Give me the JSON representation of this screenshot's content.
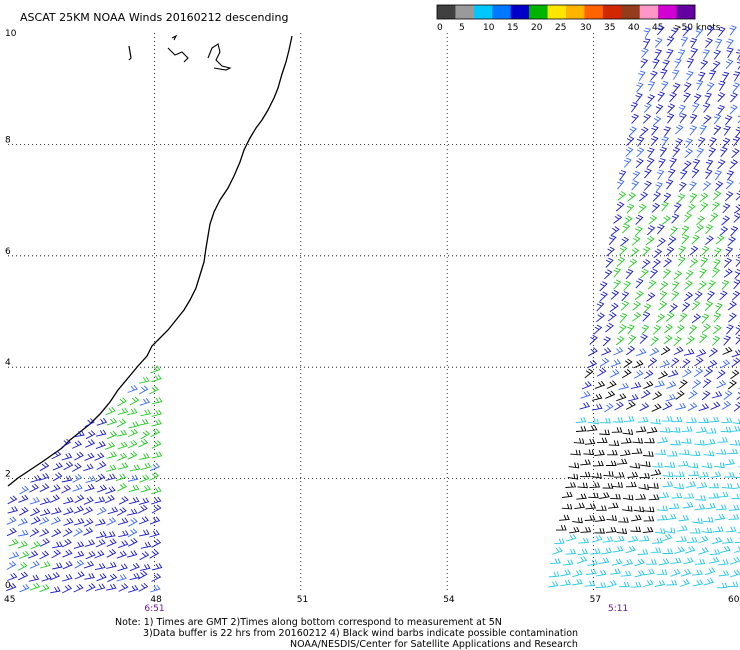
{
  "title": "ASCAT 25KM NOAA Winds 20160212 descending",
  "legend": {
    "colors": [
      "#404040",
      "#9a9a9a",
      "#00c8ff",
      "#0078ff",
      "#0000c8",
      "#00b400",
      "#ffe600",
      "#ffb400",
      "#ff6400",
      "#d22800",
      "#963c1e",
      "#ff96c8",
      "#d200d2",
      "#6400a0"
    ],
    "labels": [
      "0",
      "5",
      "10",
      "15",
      "20",
      "25",
      "30",
      "35",
      "40",
      "45",
      ">50 knots"
    ]
  },
  "chart_data": {
    "type": "wind-barb-map",
    "xlim": [
      45,
      60
    ],
    "ylim": [
      0,
      10
    ],
    "x_ticks": [
      "45",
      "48",
      "51",
      "54",
      "57",
      "60"
    ],
    "y_ticks": [
      "0",
      "2",
      "4",
      "6",
      "8",
      "10"
    ],
    "pass_times": [
      {
        "lon": 48,
        "label": "6:51"
      },
      {
        "lon": 57.5,
        "label": "5:11"
      }
    ],
    "swaths": [
      {
        "lon_range": [
          45.0,
          48.1
        ],
        "lat_range": [
          0.0,
          4.3
        ],
        "dominant_speeds_kt": [
          "15-20",
          "10-15"
        ]
      },
      {
        "lon_range": [
          56.9,
          60.0
        ],
        "lat_range": [
          0.0,
          10.0
        ],
        "dominant_speeds_kt": [
          "5-10",
          "10-15",
          "15-20"
        ]
      }
    ]
  },
  "notes": [
    "Note: 1) Times are GMT 2)Times along bottom correspond to measurement at 5N",
    "3)Data buffer is 22 hrs from 20160212 4) Black wind barbs indicate possible contamination",
    "NOAA/NESDIS/Center for Satellite Applications and Research"
  ]
}
